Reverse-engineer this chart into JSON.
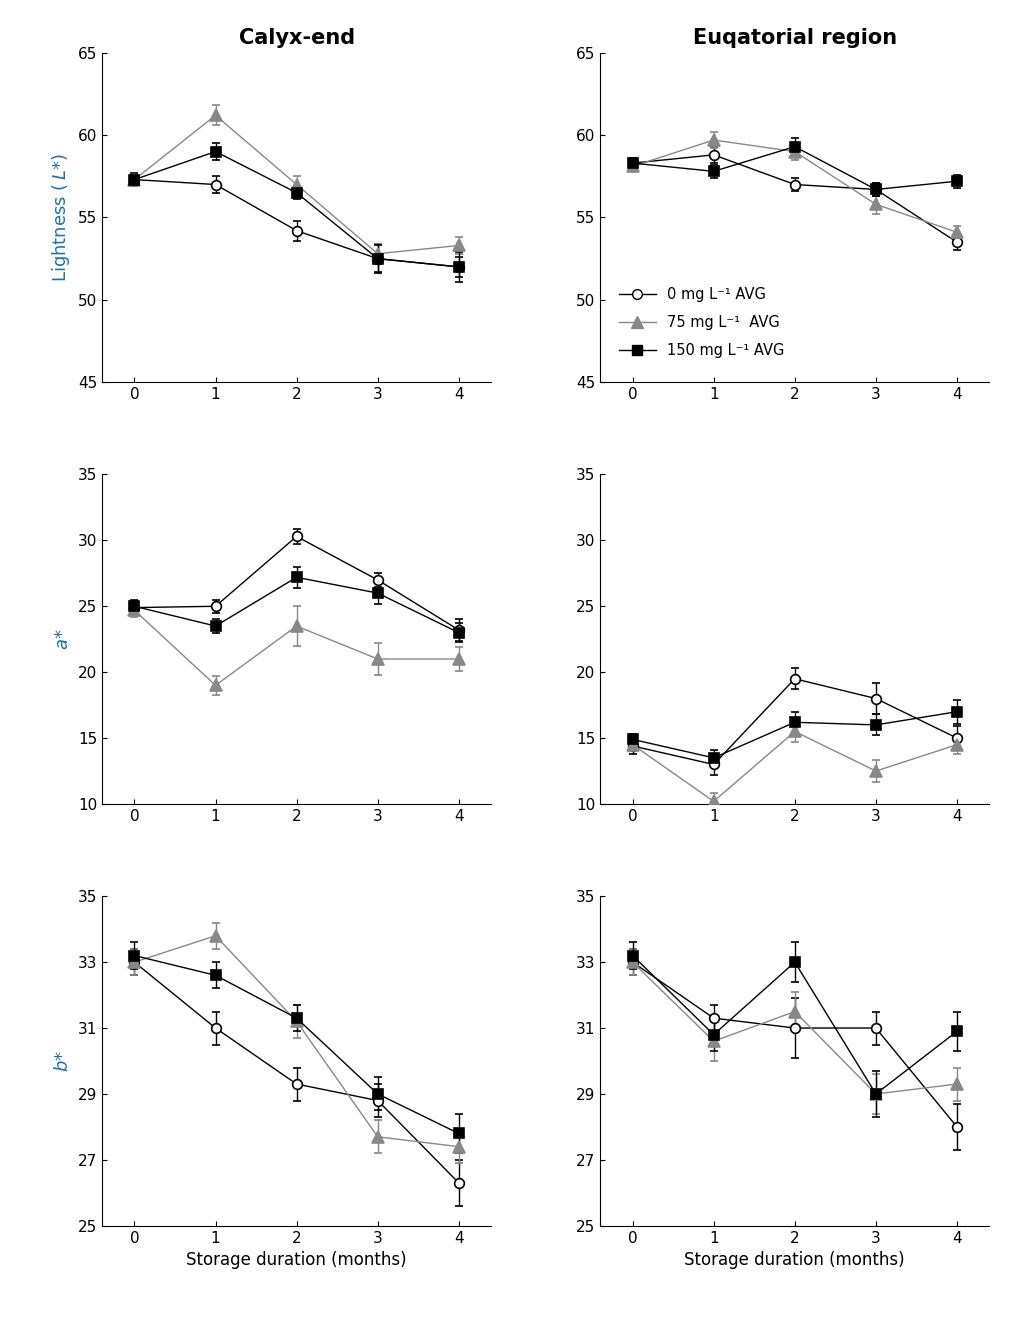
{
  "x": [
    0,
    1,
    2,
    3,
    4
  ],
  "col_titles": [
    "Calyx-end",
    "Euqatorial region"
  ],
  "calyx_L_avg0": [
    57.3,
    57.0,
    54.2,
    52.5,
    52.0
  ],
  "calyx_L_avg75": [
    57.3,
    61.2,
    57.0,
    52.8,
    53.3
  ],
  "calyx_L_avg150": [
    57.3,
    59.0,
    56.5,
    52.5,
    52.0
  ],
  "calyx_L_err0": [
    0.4,
    0.5,
    0.6,
    0.9,
    0.6
  ],
  "calyx_L_err75": [
    0.3,
    0.6,
    0.5,
    0.6,
    0.5
  ],
  "calyx_L_err150": [
    0.3,
    0.5,
    0.4,
    0.8,
    0.9
  ],
  "equat_L_avg0": [
    58.3,
    58.8,
    57.0,
    56.7,
    53.5
  ],
  "equat_L_avg75": [
    58.1,
    59.7,
    59.0,
    55.8,
    54.1
  ],
  "equat_L_avg150": [
    58.3,
    57.8,
    59.3,
    56.7,
    57.2
  ],
  "equat_L_err0": [
    0.3,
    0.5,
    0.4,
    0.4,
    0.5
  ],
  "equat_L_err75": [
    0.3,
    0.5,
    0.5,
    0.6,
    0.4
  ],
  "equat_L_err150": [
    0.3,
    0.4,
    0.5,
    0.4,
    0.4
  ],
  "calyx_a_avg0": [
    24.9,
    25.0,
    30.3,
    27.0,
    23.2
  ],
  "calyx_a_avg75": [
    24.7,
    19.0,
    23.5,
    21.0,
    21.0
  ],
  "calyx_a_avg150": [
    25.0,
    23.5,
    27.2,
    26.0,
    23.0
  ],
  "calyx_a_err0": [
    0.5,
    0.5,
    0.6,
    0.5,
    0.8
  ],
  "calyx_a_err75": [
    0.5,
    0.7,
    1.5,
    1.2,
    0.9
  ],
  "calyx_a_err150": [
    0.5,
    0.5,
    0.8,
    0.8,
    0.7
  ],
  "equat_a_avg0": [
    14.4,
    13.0,
    19.5,
    18.0,
    15.0
  ],
  "equat_a_avg75": [
    14.5,
    10.2,
    15.5,
    12.5,
    14.5
  ],
  "equat_a_avg150": [
    14.9,
    13.5,
    16.2,
    16.0,
    17.0
  ],
  "equat_a_err0": [
    0.6,
    0.8,
    0.8,
    1.2,
    0.9
  ],
  "equat_a_err75": [
    0.5,
    0.6,
    0.8,
    0.8,
    0.7
  ],
  "equat_a_err150": [
    0.4,
    0.6,
    0.8,
    0.8,
    0.9
  ],
  "calyx_b_avg0": [
    33.0,
    31.0,
    29.3,
    28.8,
    26.3
  ],
  "calyx_b_avg75": [
    33.0,
    33.8,
    31.2,
    27.7,
    27.4
  ],
  "calyx_b_avg150": [
    33.2,
    32.6,
    31.3,
    29.0,
    27.8
  ],
  "calyx_b_err0": [
    0.4,
    0.5,
    0.5,
    0.5,
    0.7
  ],
  "calyx_b_err75": [
    0.4,
    0.4,
    0.5,
    0.5,
    0.5
  ],
  "calyx_b_err150": [
    0.4,
    0.4,
    0.4,
    0.5,
    0.6
  ],
  "equat_b_avg0": [
    33.0,
    31.3,
    31.0,
    31.0,
    28.0
  ],
  "equat_b_avg75": [
    33.0,
    30.6,
    31.5,
    29.0,
    29.3
  ],
  "equat_b_avg150": [
    33.2,
    30.8,
    33.0,
    29.0,
    30.9
  ],
  "equat_b_err0": [
    0.4,
    0.4,
    0.9,
    0.5,
    0.7
  ],
  "equat_b_err75": [
    0.4,
    0.6,
    0.6,
    0.6,
    0.5
  ],
  "equat_b_err150": [
    0.4,
    0.5,
    0.6,
    0.7,
    0.6
  ],
  "ylims_L": [
    45,
    65
  ],
  "ylims_a": [
    10,
    35
  ],
  "ylims_b": [
    25,
    35
  ],
  "yticks_L": [
    45,
    50,
    55,
    60,
    65
  ],
  "yticks_a": [
    10,
    15,
    20,
    25,
    30,
    35
  ],
  "yticks_b": [
    25,
    27,
    29,
    31,
    33,
    35
  ],
  "color0": "#000000",
  "color75": "#888888",
  "color150": "#000000",
  "legend_labels": [
    "0 mg L⁻¹ AVG",
    "75 mg L⁻¹  AVG",
    "150 mg L⁻¹ AVG"
  ],
  "xlabel": "Storage duration (months)",
  "ylabel_L": "Lightness ( $L$*)",
  "ylabel_a": "$a$*",
  "ylabel_b": "$b$*",
  "label_color": "#2471a3",
  "title_fontsize": 15,
  "label_fontsize": 13,
  "tick_fontsize": 11
}
